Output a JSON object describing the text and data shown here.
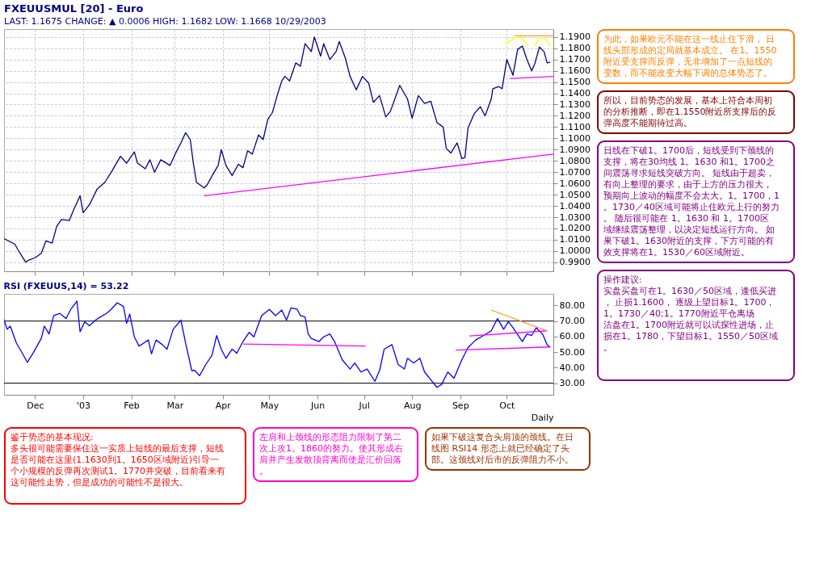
{
  "chart_data": [
    {
      "type": "line",
      "title": "FXEUUSMUL [20] - Euro",
      "subtitle": "LAST: 1.1675     CHANGE: ▲ 0.0006     HIGH: 1.1682     LOW: 1.1668     10/29/2003",
      "x": [
        "2002-11-11",
        "2002-11-18",
        "2002-11-20",
        "2002-11-25",
        "2002-11-27",
        "2002-12-01",
        "2002-12-05",
        "2002-12-08",
        "2002-12-12",
        "2002-12-15",
        "2002-12-18",
        "2002-12-23",
        "2002-12-26",
        "2002-12-30",
        "2003-01-01",
        "2003-01-05",
        "2003-01-10",
        "2003-01-15",
        "2003-01-20",
        "2003-01-25",
        "2003-01-29",
        "2003-02-03",
        "2003-02-05",
        "2003-02-10",
        "2003-02-13",
        "2003-02-16",
        "2003-02-20",
        "2003-02-26",
        "2003-03-02",
        "2003-03-05",
        "2003-03-08",
        "2003-03-11",
        "2003-03-13",
        "2003-03-15",
        "2003-03-20",
        "2003-03-22",
        "2003-03-26",
        "2003-03-29",
        "2003-03-31",
        "2003-04-03",
        "2003-04-07",
        "2003-04-11",
        "2003-04-14",
        "2003-04-17",
        "2003-04-20",
        "2003-04-24",
        "2003-04-27",
        "2003-04-30",
        "2003-05-03",
        "2003-05-06",
        "2003-05-09",
        "2003-05-11",
        "2003-05-14",
        "2003-05-16",
        "2003-05-18",
        "2003-05-21",
        "2003-05-24",
        "2003-05-28",
        "2003-05-30",
        "2003-06-03",
        "2003-06-05",
        "2003-06-09",
        "2003-06-13",
        "2003-06-15",
        "2003-06-19",
        "2003-06-22",
        "2003-06-26",
        "2003-06-30",
        "2003-07-04",
        "2003-07-07",
        "2003-07-11",
        "2003-07-15",
        "2003-07-18",
        "2003-07-24",
        "2003-07-29",
        "2003-08-01",
        "2003-08-05",
        "2003-08-09",
        "2003-08-13",
        "2003-08-17",
        "2003-08-21",
        "2003-08-23",
        "2003-08-26",
        "2003-08-30",
        "2003-09-02",
        "2003-09-04",
        "2003-09-06",
        "2003-09-10",
        "2003-09-14",
        "2003-09-17",
        "2003-09-21",
        "2003-09-22",
        "2003-09-26",
        "2003-09-28",
        "2003-10-01",
        "2003-10-03",
        "2003-10-05",
        "2003-10-08",
        "2003-10-11",
        "2003-10-14",
        "2003-10-17",
        "2003-10-19",
        "2003-10-22",
        "2003-10-25",
        "2003-10-27",
        "2003-10-29"
      ],
      "series": [
        {
          "color": "#000080",
          "values": [
            1.011,
            1.006,
            1.001,
            0.99,
            0.992,
            0.994,
            0.998,
            1.009,
            1.007,
            1.022,
            1.028,
            1.027,
            1.037,
            1.049,
            1.034,
            1.041,
            1.055,
            1.061,
            1.072,
            1.084,
            1.078,
            1.088,
            1.078,
            1.073,
            1.081,
            1.07,
            1.081,
            1.076,
            1.088,
            1.096,
            1.105,
            1.099,
            1.078,
            1.061,
            1.056,
            1.059,
            1.069,
            1.076,
            1.09,
            1.076,
            1.067,
            1.077,
            1.074,
            1.089,
            1.086,
            1.103,
            1.099,
            1.117,
            1.123,
            1.138,
            1.151,
            1.155,
            1.151,
            1.159,
            1.167,
            1.164,
            1.184,
            1.177,
            1.19,
            1.173,
            1.184,
            1.17,
            1.177,
            1.186,
            1.171,
            1.155,
            1.143,
            1.155,
            1.149,
            1.132,
            1.138,
            1.119,
            1.124,
            1.147,
            1.135,
            1.118,
            1.138,
            1.131,
            1.133,
            1.114,
            1.11,
            1.091,
            1.087,
            1.096,
            1.082,
            1.083,
            1.109,
            1.122,
            1.128,
            1.12,
            1.135,
            1.144,
            1.146,
            1.144,
            1.17,
            1.163,
            1.156,
            1.179,
            1.182,
            1.17,
            1.16,
            1.166,
            1.181,
            1.177,
            1.167,
            1.1675
          ]
        },
        {
          "type": "line",
          "color": "#ff00ff",
          "x": [
            "2003-03-20",
            "2003-10-31"
          ],
          "values": [
            1.049,
            1.086
          ]
        },
        {
          "type": "line",
          "color": "#ff00ff",
          "x": [
            "2003-10-03",
            "2003-10-31"
          ],
          "values": [
            1.153,
            1.155
          ]
        },
        {
          "type": "line",
          "color": "#ff9933",
          "x": [
            "2003-10-06",
            "2003-10-31"
          ],
          "values": [
            1.191,
            1.191
          ]
        },
        {
          "type": "line",
          "color": "#ffff00",
          "x": [
            "2003-09-30",
            "2003-10-06",
            "2003-10-10",
            "2003-10-15"
          ],
          "values": [
            1.184,
            1.189,
            1.19,
            1.182
          ]
        },
        {
          "type": "line",
          "color": "#ffff00",
          "x": [
            "2003-10-19",
            "2003-10-22",
            "2003-10-26",
            "2003-10-29"
          ],
          "values": [
            1.182,
            1.189,
            1.189,
            1.182
          ]
        }
      ],
      "xlim": [
        "2002-11-11",
        "2003-10-31"
      ],
      "xticks": [
        {
          "value": "2002-12-01",
          "label": null
        },
        {
          "value": "2003-01-01",
          "label": null
        },
        {
          "value": "2003-02-01",
          "label": null
        },
        {
          "value": "2003-03-01",
          "label": null
        },
        {
          "value": "2003-04-01",
          "label": null
        },
        {
          "value": "2003-05-01",
          "label": null
        },
        {
          "value": "2003-06-01",
          "label": null
        },
        {
          "value": "2003-07-01",
          "label": null
        },
        {
          "value": "2003-08-01",
          "label": null
        },
        {
          "value": "2003-09-01",
          "label": null
        },
        {
          "value": "2003-10-01",
          "label": null
        }
      ],
      "ylim": [
        0.982,
        1.197
      ],
      "yticks": [
        {
          "value": 0.99,
          "label": "0.9900"
        },
        {
          "value": 1.0,
          "label": "1.0000"
        },
        {
          "value": 1.01,
          "label": "1.0100"
        },
        {
          "value": 1.02,
          "label": "1.0200"
        },
        {
          "value": 1.03,
          "label": "1.0300"
        },
        {
          "value": 1.04,
          "label": "1.0400"
        },
        {
          "value": 1.05,
          "label": "1.0500"
        },
        {
          "value": 1.06,
          "label": "1.0600"
        },
        {
          "value": 1.07,
          "label": "1.0700"
        },
        {
          "value": 1.08,
          "label": "1.0800"
        },
        {
          "value": 1.09,
          "label": "1.0900"
        },
        {
          "value": 1.1,
          "label": "1.1000"
        },
        {
          "value": 1.11,
          "label": "1.1100"
        },
        {
          "value": 1.12,
          "label": "1.1200"
        },
        {
          "value": 1.13,
          "label": "1.1300"
        },
        {
          "value": 1.14,
          "label": "1.1400"
        },
        {
          "value": 1.15,
          "label": "1.1500"
        },
        {
          "value": 1.16,
          "label": "1.1600"
        },
        {
          "value": 1.17,
          "label": "1.1700"
        },
        {
          "value": 1.18,
          "label": "1.1800"
        },
        {
          "value": 1.19,
          "label": "1.1900"
        }
      ],
      "grid": true,
      "tick_labels": "y",
      "marker": "none",
      "line_style": "solid"
    },
    {
      "type": "line",
      "title": "RSI (FXEUUS,14) = 53.22",
      "xlabel": "Daily",
      "x": [
        "2002-11-11",
        "2002-11-13",
        "2002-11-15",
        "2002-11-19",
        "2002-11-23",
        "2002-11-26",
        "2002-11-30",
        "2002-12-05",
        "2002-12-07",
        "2002-12-10",
        "2002-12-13",
        "2002-12-17",
        "2002-12-21",
        "2002-12-24",
        "2002-12-28",
        "2002-12-30",
        "2003-01-02",
        "2003-01-05",
        "2003-01-09",
        "2003-01-12",
        "2003-01-16",
        "2003-01-19",
        "2003-01-23",
        "2003-01-27",
        "2003-01-29",
        "2003-01-31",
        "2003-02-03",
        "2003-02-06",
        "2003-02-09",
        "2003-02-12",
        "2003-02-14",
        "2003-02-17",
        "2003-02-21",
        "2003-02-24",
        "2003-02-28",
        "2003-03-05",
        "2003-03-08",
        "2003-03-12",
        "2003-03-14",
        "2003-03-17",
        "2003-03-21",
        "2003-03-25",
        "2003-03-28",
        "2003-03-31",
        "2003-04-03",
        "2003-04-07",
        "2003-04-10",
        "2003-04-14",
        "2003-04-18",
        "2003-04-21",
        "2003-04-26",
        "2003-05-01",
        "2003-05-05",
        "2003-05-09",
        "2003-05-12",
        "2003-05-15",
        "2003-05-19",
        "2003-05-21",
        "2003-05-24",
        "2003-05-26",
        "2003-05-28",
        "2003-06-02",
        "2003-06-05",
        "2003-06-09",
        "2003-06-12",
        "2003-06-17",
        "2003-06-22",
        "2003-06-25",
        "2003-06-29",
        "2003-07-03",
        "2003-07-08",
        "2003-07-11",
        "2003-07-14",
        "2003-07-19",
        "2003-07-23",
        "2003-07-27",
        "2003-07-29",
        "2003-08-02",
        "2003-08-06",
        "2003-08-09",
        "2003-08-13",
        "2003-08-17",
        "2003-08-20",
        "2003-08-24",
        "2003-08-28",
        "2003-09-02",
        "2003-09-06",
        "2003-09-11",
        "2003-09-16",
        "2003-09-21",
        "2003-09-25",
        "2003-09-29",
        "2003-10-02",
        "2003-10-05",
        "2003-10-11",
        "2003-10-14",
        "2003-10-17",
        "2003-10-20",
        "2003-10-24",
        "2003-10-27",
        "2003-10-29"
      ],
      "series": [
        {
          "color": "#0000ff",
          "values": [
            71.0,
            64.7,
            66.7,
            55.8,
            48.9,
            43.4,
            49.9,
            58.8,
            66.7,
            61.7,
            73.5,
            74.9,
            71.6,
            77.5,
            82.8,
            63.1,
            69.6,
            67.0,
            70.6,
            72.6,
            74.9,
            77.5,
            81.8,
            79.4,
            68.6,
            74.5,
            59.8,
            53.9,
            55.8,
            57.8,
            48.9,
            57.8,
            54.8,
            51.9,
            64.7,
            70.6,
            55.8,
            38.1,
            38.1,
            34.8,
            42.0,
            47.9,
            60.7,
            51.9,
            46.0,
            51.9,
            49.3,
            56.8,
            62.7,
            59.8,
            73.5,
            77.5,
            73.5,
            77.1,
            70.6,
            78.5,
            77.5,
            73.5,
            72.6,
            61.7,
            58.8,
            56.8,
            59.8,
            61.7,
            56.8,
            45.0,
            39.1,
            43.0,
            37.2,
            39.1,
            31.2,
            38.1,
            51.9,
            54.8,
            42.0,
            39.1,
            46.0,
            43.0,
            46.0,
            37.2,
            32.2,
            27.3,
            29.2,
            37.2,
            33.2,
            45.0,
            52.9,
            57.8,
            60.7,
            63.7,
            71.6,
            64.7,
            69.6,
            65.7,
            56.8,
            61.7,
            60.7,
            65.7,
            61.7,
            54.8,
            53.22
          ]
        },
        {
          "type": "line",
          "color": "#ff00ff",
          "x": [
            "2003-04-14",
            "2003-07-02"
          ],
          "values": [
            55.2,
            53.9
          ]
        },
        {
          "type": "line",
          "color": "#ff00ff",
          "x": [
            "2003-09-07",
            "2003-10-27"
          ],
          "values": [
            60.4,
            63.7
          ]
        },
        {
          "type": "line",
          "color": "#ff00ff",
          "x": [
            "2003-08-29",
            "2003-10-29"
          ],
          "values": [
            51.3,
            53.3
          ]
        },
        {
          "type": "line",
          "color": "#ff9933",
          "x": [
            "2003-09-21",
            "2003-10-27"
          ],
          "values": [
            77.1,
            63.7
          ]
        }
      ],
      "ref_lines": [
        {
          "axis": "y",
          "value": 70,
          "color": "#000000"
        },
        {
          "axis": "y",
          "value": 30,
          "color": "#000000"
        }
      ],
      "xlim": [
        "2002-11-11",
        "2003-10-31"
      ],
      "xticks": [
        {
          "value": "2002-12-01",
          "label": "Dec"
        },
        {
          "value": "2003-01-01",
          "label": "'03"
        },
        {
          "value": "2003-02-01",
          "label": "Feb"
        },
        {
          "value": "2003-03-01",
          "label": "Mar"
        },
        {
          "value": "2003-04-01",
          "label": "Apr"
        },
        {
          "value": "2003-05-01",
          "label": "May"
        },
        {
          "value": "2003-06-01",
          "label": "Jun"
        },
        {
          "value": "2003-07-01",
          "label": "Jul"
        },
        {
          "value": "2003-08-01",
          "label": "Aug"
        },
        {
          "value": "2003-09-01",
          "label": "Sep"
        },
        {
          "value": "2003-10-01",
          "label": "Oct"
        }
      ],
      "ylim": [
        22.5,
        87.5
      ],
      "yticks": [
        {
          "value": 30,
          "label": "30.00"
        },
        {
          "value": 40,
          "label": "40.00"
        },
        {
          "value": 50,
          "label": "50.00"
        },
        {
          "value": 60,
          "label": "60.00"
        },
        {
          "value": 70,
          "label": "70.00"
        },
        {
          "value": 80,
          "label": "80.00"
        }
      ],
      "grid": false,
      "marker": "none",
      "line_style": "solid"
    },
    {
      "type": "other",
      "annotations": [
        "为此，如果欧元不能在这一线止住下滑， 日线头部形成的定局就基本成立。 在1。1550附近受支撑而反弹，无非增加了一点短线的变数，而不能改变大幅下调的总体势态了。",
        "所以，目前势态的发展，基本上符合本周初的分析推断，即在1.1550附近所支撑后的反弹高度不能期待过高。",
        "左肩和上颈线的形态阻力限制了第二次上攻1。1860的努力。使其形成右肩并产生发散顶背离而使是汇价回落。",
        "如果下破这复合头肩顶的颈线。在日线图 RSI14 形态上就已经确定了头部。这颈线对后市的反弹阻力不小。",
        "日线在下破1。1700后，短线受到下颈线的支撑，将在30均线 1。1630 和1。1700之间震荡寻求短线突破方向。 短线由于超卖，有向上整理的要求，由于上方的压力很大，预期向上波动的幅度不会太大。1。1700，1。1730／40区域可能将止住欧元上行的努力。 随后很可能在 1。1630 和 1。1700区域继续震荡整理，以决定短线运行方向。 如果下破1。1630附近的支撑，下方可能的有效支撑将在1。1530／60区域附近。",
        "鉴于势态的基本现况:",
        "多头很可能需要保住这一实质上短线的最后支撑，短线是否可能在这里(1.1630到1。1650区域附近)引导一个小规模的反弹再次测试1。1770并突破，目前看来有这可能性走势，但是成功的可能性不是很大。",
        "操作建议:",
        "实盘买盘可在1。1630／50区域，逢低买进， 止损1.1600， 逐级上望目标1。1700，1。1730／40;1。1770附近平仓离场",
        "沽盘在1。1700附近就可以试探性进场，止损在1。1780，下望目标1。1550／50区域。"
      ]
    }
  ]
}
